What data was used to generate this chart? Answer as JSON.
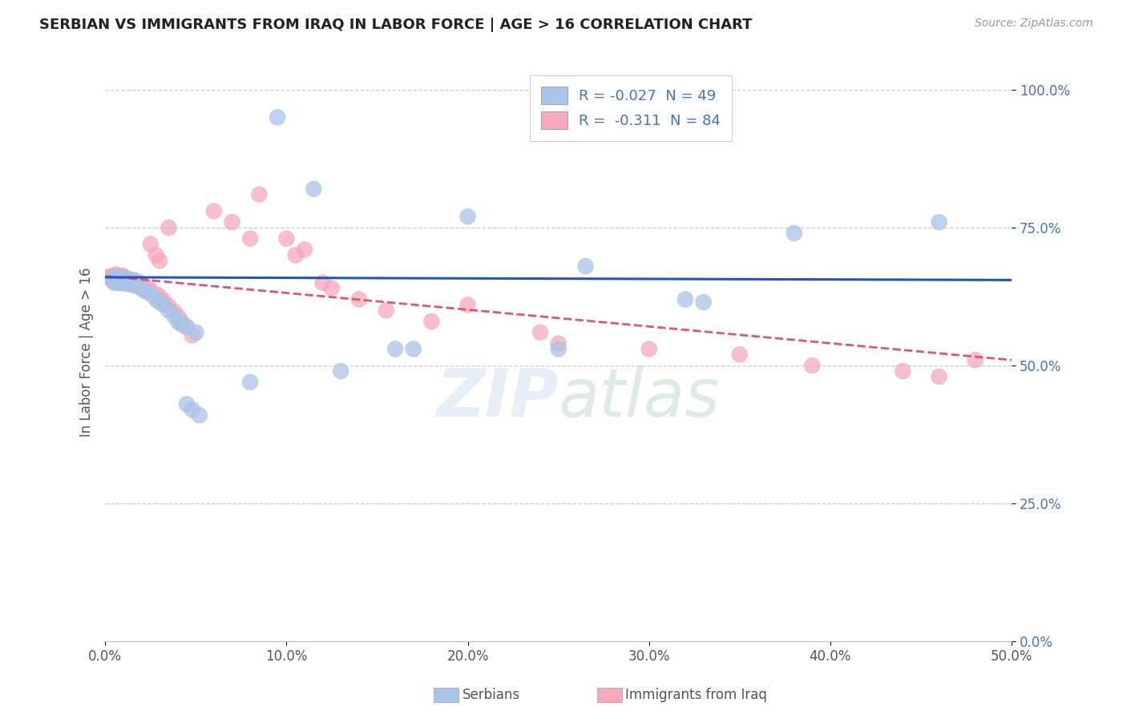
{
  "title": "SERBIAN VS IMMIGRANTS FROM IRAQ IN LABOR FORCE | AGE > 16 CORRELATION CHART",
  "source": "Source: ZipAtlas.com",
  "ylabel": "In Labor Force | Age > 16",
  "xlim": [
    0.0,
    0.5
  ],
  "ylim": [
    0.0,
    1.05
  ],
  "yticks": [
    0.0,
    0.25,
    0.5,
    0.75,
    1.0
  ],
  "ytick_labels": [
    "0.0%",
    "25.0%",
    "50.0%",
    "75.0%",
    "100.0%"
  ],
  "xticks": [
    0.0,
    0.1,
    0.2,
    0.3,
    0.4,
    0.5
  ],
  "xtick_labels": [
    "0.0%",
    "10.0%",
    "20.0%",
    "30.0%",
    "40.0%",
    "50.0%"
  ],
  "watermark": "ZIPatlas",
  "serbian_color": "#a8c4e8",
  "iraq_color": "#f5a8bc",
  "serbian_line_color": "#2255bb",
  "iraq_line_color": "#dd5577",
  "background_color": "#ffffff",
  "grid_color": "#cccccc",
  "serbians_x": [
    0.004,
    0.005,
    0.005,
    0.006,
    0.006,
    0.007,
    0.007,
    0.008,
    0.008,
    0.009,
    0.009,
    0.01,
    0.01,
    0.01,
    0.011,
    0.011,
    0.012,
    0.013,
    0.015,
    0.016,
    0.018,
    0.02,
    0.022,
    0.025,
    0.028,
    0.03,
    0.032,
    0.035,
    0.038,
    0.04,
    0.042,
    0.045,
    0.05,
    0.095,
    0.115,
    0.2,
    0.265,
    0.32,
    0.33,
    0.38,
    0.46,
    0.25,
    0.16,
    0.17,
    0.13,
    0.08,
    0.045,
    0.048,
    0.052
  ],
  "serbians_y": [
    0.655,
    0.65,
    0.66,
    0.655,
    0.66,
    0.65,
    0.655,
    0.65,
    0.66,
    0.655,
    0.65,
    0.65,
    0.655,
    0.66,
    0.655,
    0.648,
    0.655,
    0.65,
    0.65,
    0.655,
    0.645,
    0.64,
    0.635,
    0.63,
    0.62,
    0.615,
    0.61,
    0.6,
    0.59,
    0.58,
    0.575,
    0.57,
    0.56,
    0.95,
    0.82,
    0.77,
    0.68,
    0.62,
    0.615,
    0.74,
    0.76,
    0.53,
    0.53,
    0.53,
    0.49,
    0.47,
    0.43,
    0.42,
    0.41
  ],
  "iraq_x": [
    0.002,
    0.003,
    0.003,
    0.004,
    0.004,
    0.005,
    0.005,
    0.005,
    0.006,
    0.006,
    0.006,
    0.007,
    0.007,
    0.007,
    0.007,
    0.008,
    0.008,
    0.008,
    0.008,
    0.009,
    0.009,
    0.009,
    0.01,
    0.01,
    0.01,
    0.01,
    0.011,
    0.011,
    0.011,
    0.012,
    0.012,
    0.012,
    0.013,
    0.013,
    0.014,
    0.014,
    0.015,
    0.015,
    0.016,
    0.016,
    0.017,
    0.018,
    0.018,
    0.019,
    0.02,
    0.021,
    0.022,
    0.023,
    0.024,
    0.025,
    0.028,
    0.03,
    0.032,
    0.035,
    0.038,
    0.04,
    0.042,
    0.045,
    0.048,
    0.025,
    0.028,
    0.03,
    0.035,
    0.06,
    0.07,
    0.08,
    0.085,
    0.1,
    0.105,
    0.11,
    0.12,
    0.125,
    0.14,
    0.155,
    0.18,
    0.2,
    0.24,
    0.25,
    0.3,
    0.35,
    0.39,
    0.44,
    0.46,
    0.48
  ],
  "iraq_y": [
    0.66,
    0.658,
    0.662,
    0.655,
    0.66,
    0.658,
    0.655,
    0.662,
    0.652,
    0.658,
    0.665,
    0.652,
    0.658,
    0.662,
    0.655,
    0.65,
    0.658,
    0.662,
    0.655,
    0.658,
    0.65,
    0.662,
    0.655,
    0.658,
    0.65,
    0.662,
    0.655,
    0.658,
    0.65,
    0.655,
    0.658,
    0.65,
    0.655,
    0.648,
    0.65,
    0.655,
    0.648,
    0.652,
    0.645,
    0.65,
    0.648,
    0.645,
    0.652,
    0.645,
    0.64,
    0.645,
    0.64,
    0.635,
    0.64,
    0.635,
    0.63,
    0.625,
    0.618,
    0.608,
    0.598,
    0.59,
    0.58,
    0.57,
    0.555,
    0.72,
    0.7,
    0.69,
    0.75,
    0.78,
    0.76,
    0.73,
    0.81,
    0.73,
    0.7,
    0.71,
    0.65,
    0.64,
    0.62,
    0.6,
    0.58,
    0.61,
    0.56,
    0.54,
    0.53,
    0.52,
    0.5,
    0.49,
    0.48,
    0.51
  ]
}
